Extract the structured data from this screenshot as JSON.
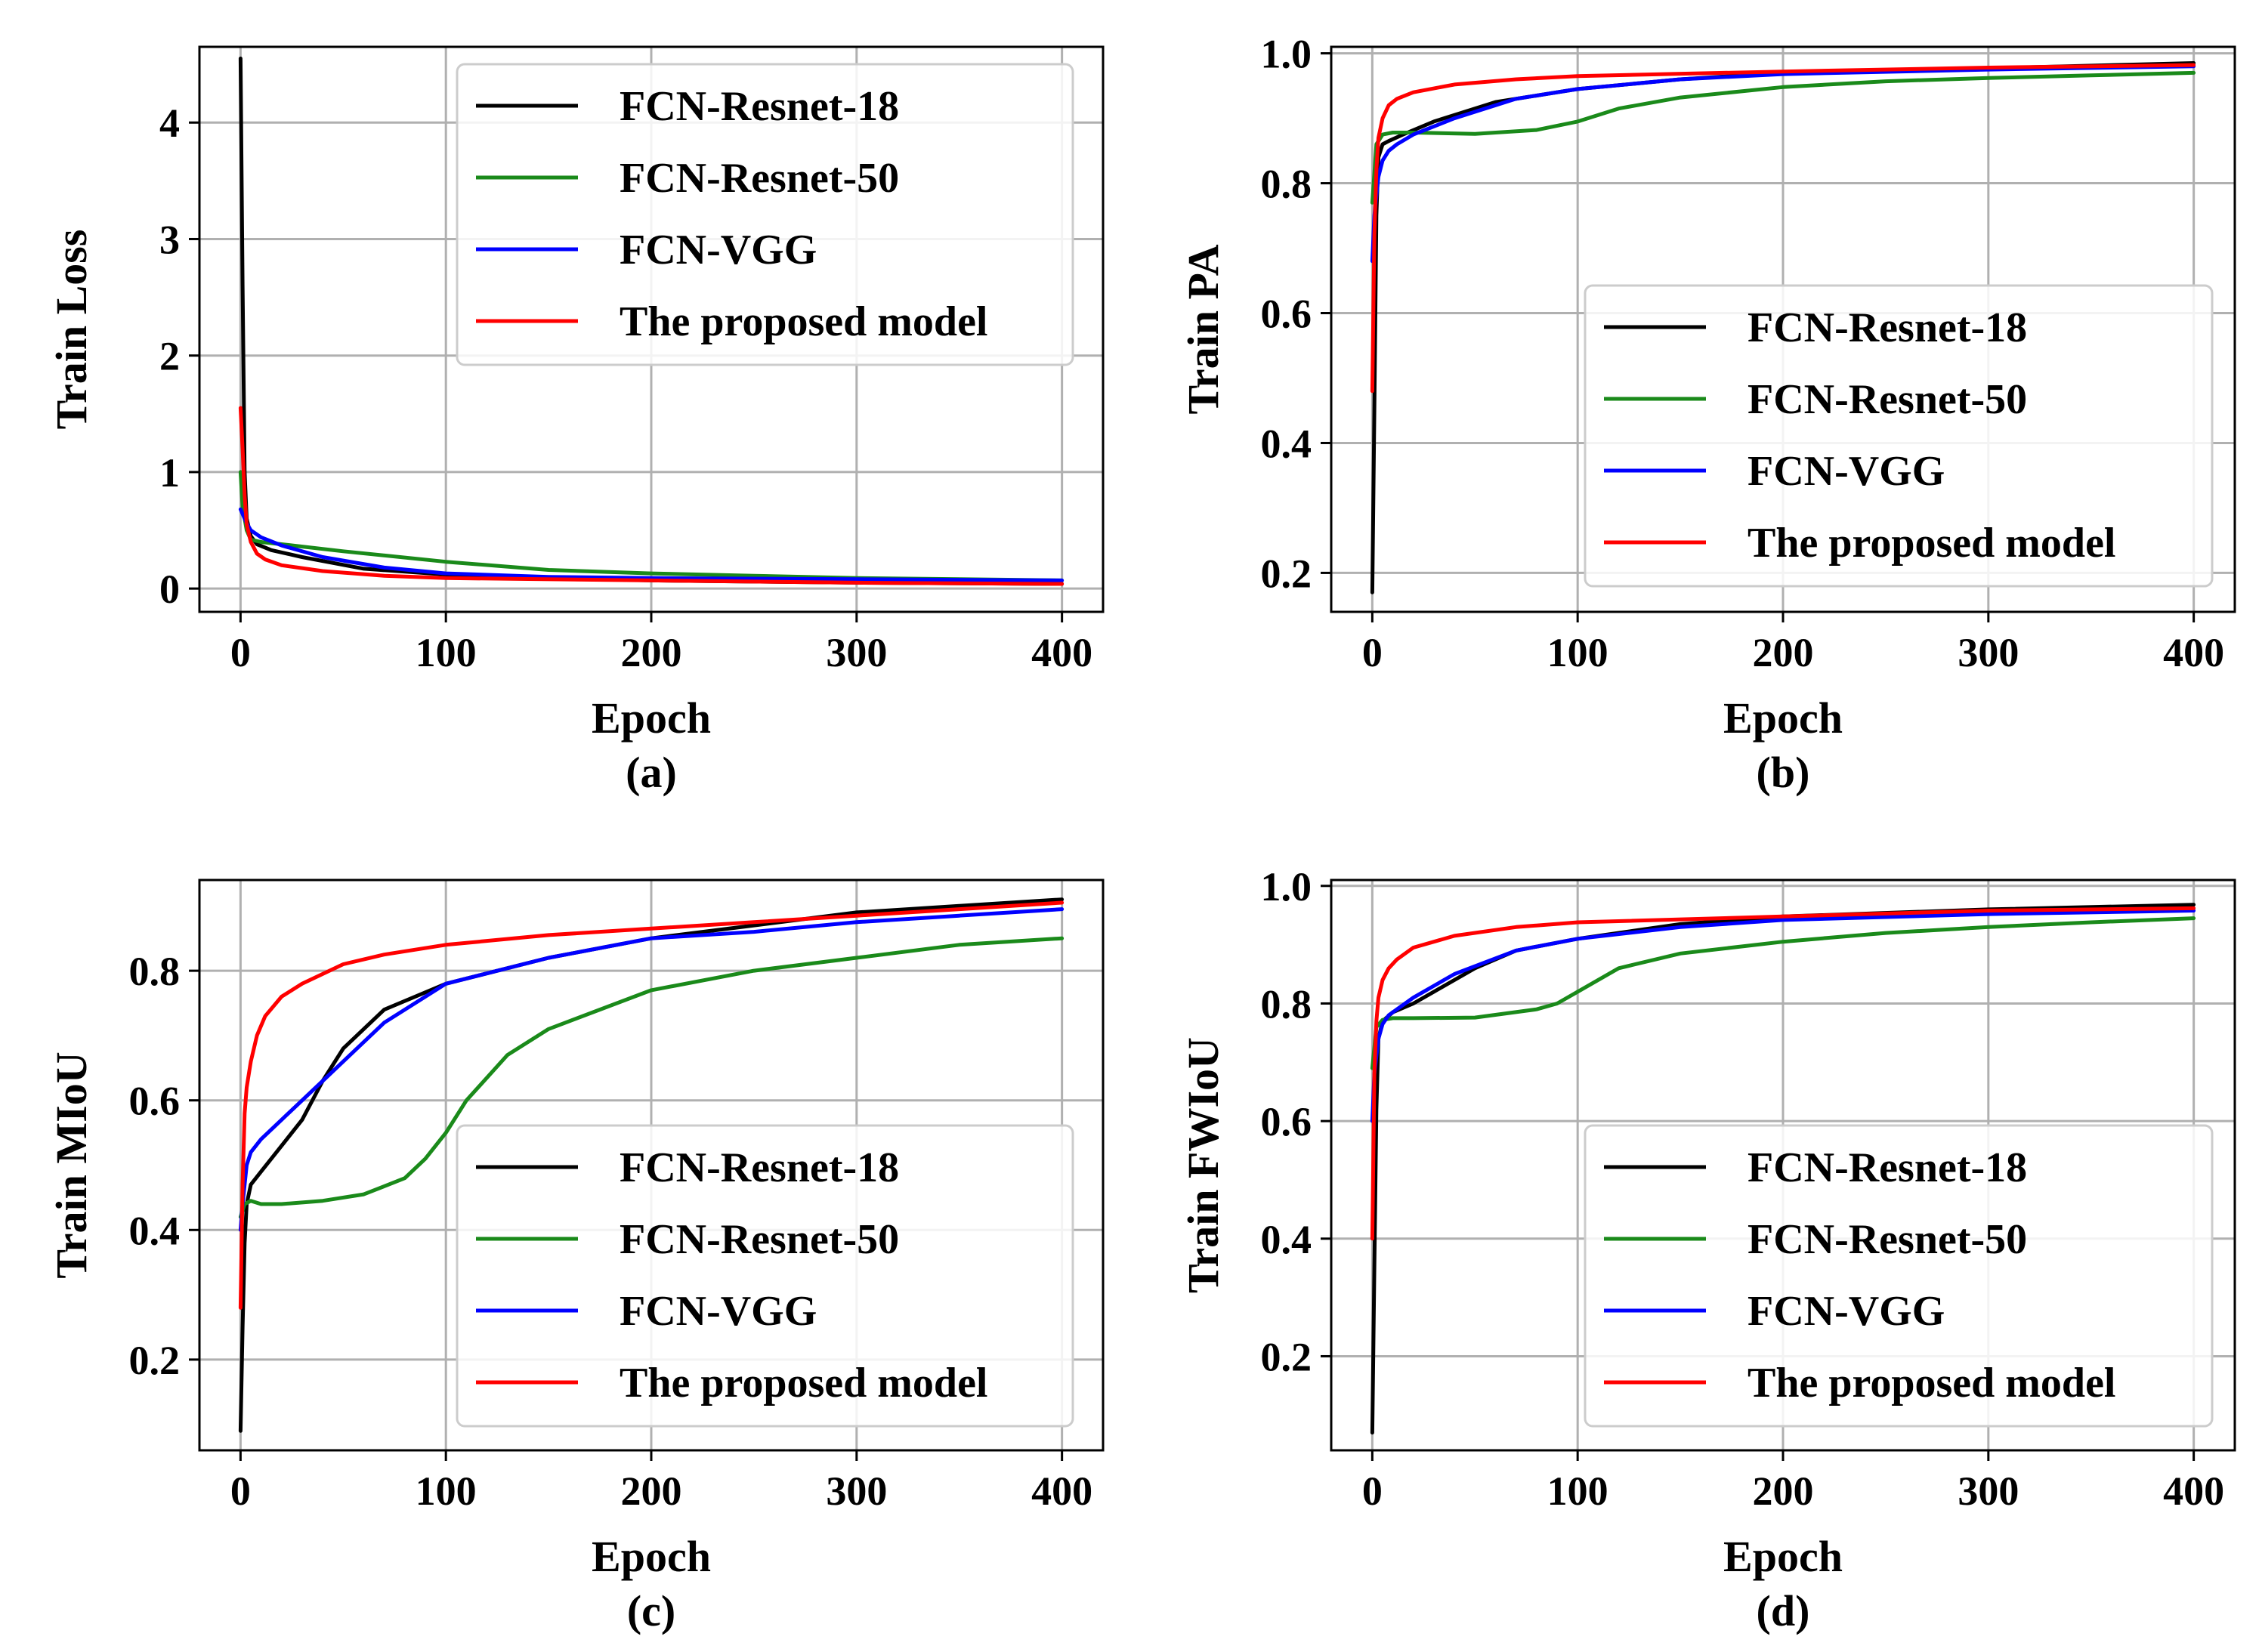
{
  "colors": {
    "FCN-Resnet-18": "#000000",
    "FCN-Resnet-50": "#1a8a1a",
    "FCN-VGG": "#0000ff",
    "The proposed model": "#ff0000"
  },
  "chart_data": [
    {
      "type": "line",
      "panel": "(a)",
      "xlabel": "Epoch",
      "ylabel": "Train Loss",
      "xlim": [
        -20,
        420
      ],
      "ylim": [
        -0.2,
        4.65
      ],
      "xticks": [
        0,
        100,
        200,
        300,
        400
      ],
      "yticks": [
        0,
        1,
        2,
        3,
        4
      ],
      "xticklabels": [
        "0",
        "100",
        "200",
        "300",
        "400"
      ],
      "yticklabels": [
        "0",
        "1",
        "2",
        "3",
        "4"
      ],
      "grid": true,
      "legend_position": "top-right",
      "series": [
        {
          "name": "FCN-Resnet-18",
          "x": [
            0,
            1,
            2,
            3,
            5,
            8,
            15,
            30,
            60,
            100,
            150,
            200,
            300,
            400
          ],
          "y": [
            4.55,
            2.6,
            1.0,
            0.6,
            0.45,
            0.38,
            0.33,
            0.27,
            0.17,
            0.12,
            0.09,
            0.07,
            0.05,
            0.04
          ]
        },
        {
          "name": "FCN-Resnet-50",
          "x": [
            0,
            1,
            3,
            5,
            10,
            20,
            50,
            100,
            150,
            200,
            250,
            300,
            350,
            400
          ],
          "y": [
            1.0,
            0.7,
            0.5,
            0.42,
            0.4,
            0.38,
            0.32,
            0.23,
            0.16,
            0.13,
            0.11,
            0.09,
            0.08,
            0.07
          ]
        },
        {
          "name": "FCN-VGG",
          "x": [
            0,
            1,
            3,
            5,
            10,
            20,
            40,
            70,
            100,
            150,
            200,
            300,
            400
          ],
          "y": [
            0.68,
            0.64,
            0.56,
            0.5,
            0.44,
            0.37,
            0.27,
            0.18,
            0.13,
            0.1,
            0.09,
            0.08,
            0.07
          ]
        },
        {
          "name": "The proposed model",
          "x": [
            0,
            1,
            2,
            3,
            5,
            8,
            12,
            20,
            40,
            70,
            100,
            200,
            300,
            400
          ],
          "y": [
            1.55,
            1.2,
            0.8,
            0.55,
            0.4,
            0.3,
            0.25,
            0.2,
            0.15,
            0.11,
            0.09,
            0.07,
            0.05,
            0.04
          ]
        }
      ]
    },
    {
      "type": "line",
      "panel": "(b)",
      "xlabel": "Epoch",
      "ylabel": "Train PA",
      "xlim": [
        -20,
        420
      ],
      "ylim": [
        0.14,
        1.01
      ],
      "xticks": [
        0,
        100,
        200,
        300,
        400
      ],
      "yticks": [
        0.2,
        0.4,
        0.6,
        0.8,
        1.0
      ],
      "xticklabels": [
        "0",
        "100",
        "200",
        "300",
        "400"
      ],
      "yticklabels": [
        "0.2",
        "0.4",
        "0.6",
        "0.8",
        "1.0"
      ],
      "grid": true,
      "legend_position": "lower-right",
      "series": [
        {
          "name": "FCN-Resnet-18",
          "x": [
            0,
            1,
            2,
            3,
            5,
            8,
            15,
            30,
            60,
            100,
            150,
            200,
            300,
            400
          ],
          "y": [
            0.17,
            0.45,
            0.75,
            0.84,
            0.86,
            0.865,
            0.875,
            0.895,
            0.925,
            0.945,
            0.96,
            0.97,
            0.977,
            0.985
          ]
        },
        {
          "name": "FCN-Resnet-50",
          "x": [
            0,
            2,
            5,
            10,
            20,
            50,
            80,
            100,
            120,
            150,
            200,
            250,
            300,
            350,
            400
          ],
          "y": [
            0.77,
            0.86,
            0.875,
            0.878,
            0.878,
            0.876,
            0.882,
            0.895,
            0.915,
            0.932,
            0.948,
            0.957,
            0.962,
            0.966,
            0.97
          ]
        },
        {
          "name": "FCN-VGG",
          "x": [
            0,
            1,
            3,
            5,
            8,
            12,
            20,
            40,
            70,
            100,
            150,
            200,
            300,
            400
          ],
          "y": [
            0.68,
            0.75,
            0.81,
            0.835,
            0.85,
            0.86,
            0.875,
            0.9,
            0.93,
            0.945,
            0.96,
            0.968,
            0.975,
            0.98
          ]
        },
        {
          "name": "The proposed model",
          "x": [
            0,
            1,
            2,
            3,
            5,
            8,
            12,
            20,
            40,
            70,
            100,
            200,
            300,
            400
          ],
          "y": [
            0.48,
            0.72,
            0.82,
            0.87,
            0.9,
            0.92,
            0.93,
            0.94,
            0.952,
            0.96,
            0.965,
            0.972,
            0.978,
            0.982
          ]
        }
      ]
    },
    {
      "type": "line",
      "panel": "(c)",
      "xlabel": "Epoch",
      "ylabel": "Train MIoU",
      "xlim": [
        -20,
        420
      ],
      "ylim": [
        0.06,
        0.94
      ],
      "xticks": [
        0,
        100,
        200,
        300,
        400
      ],
      "yticks": [
        0.2,
        0.4,
        0.6,
        0.8
      ],
      "xticklabels": [
        "0",
        "100",
        "200",
        "300",
        "400"
      ],
      "yticklabels": [
        "0.2",
        "0.4",
        "0.6",
        "0.8"
      ],
      "grid": true,
      "legend_position": "lower-right",
      "series": [
        {
          "name": "FCN-Resnet-18",
          "x": [
            0,
            1,
            2,
            3,
            5,
            10,
            20,
            30,
            40,
            50,
            70,
            100,
            150,
            200,
            250,
            300,
            350,
            400
          ],
          "y": [
            0.09,
            0.25,
            0.38,
            0.44,
            0.47,
            0.49,
            0.53,
            0.57,
            0.63,
            0.68,
            0.74,
            0.78,
            0.82,
            0.85,
            0.87,
            0.89,
            0.9,
            0.91
          ]
        },
        {
          "name": "FCN-Resnet-50",
          "x": [
            0,
            2,
            5,
            10,
            20,
            40,
            60,
            80,
            90,
            100,
            110,
            130,
            150,
            200,
            250,
            300,
            350,
            400
          ],
          "y": [
            0.42,
            0.44,
            0.445,
            0.44,
            0.44,
            0.445,
            0.455,
            0.48,
            0.51,
            0.55,
            0.6,
            0.67,
            0.71,
            0.77,
            0.8,
            0.82,
            0.84,
            0.85
          ]
        },
        {
          "name": "FCN-VGG",
          "x": [
            0,
            1,
            3,
            5,
            10,
            20,
            40,
            70,
            100,
            150,
            200,
            250,
            300,
            350,
            400
          ],
          "y": [
            0.4,
            0.44,
            0.5,
            0.52,
            0.54,
            0.57,
            0.63,
            0.72,
            0.78,
            0.82,
            0.85,
            0.86,
            0.875,
            0.885,
            0.895
          ]
        },
        {
          "name": "The proposed model",
          "x": [
            0,
            1,
            2,
            3,
            5,
            8,
            12,
            20,
            30,
            50,
            70,
            100,
            150,
            200,
            250,
            300,
            350,
            400
          ],
          "y": [
            0.28,
            0.47,
            0.58,
            0.62,
            0.66,
            0.7,
            0.73,
            0.76,
            0.78,
            0.81,
            0.825,
            0.84,
            0.855,
            0.865,
            0.875,
            0.885,
            0.895,
            0.905
          ]
        }
      ]
    },
    {
      "type": "line",
      "panel": "(d)",
      "xlabel": "Epoch",
      "ylabel": "Train FWIoU",
      "xlim": [
        -20,
        420
      ],
      "ylim": [
        0.04,
        1.01
      ],
      "xticks": [
        0,
        100,
        200,
        300,
        400
      ],
      "yticks": [
        0.2,
        0.4,
        0.6,
        0.8,
        1.0
      ],
      "xticklabels": [
        "0",
        "100",
        "200",
        "300",
        "400"
      ],
      "yticklabels": [
        "0.2",
        "0.4",
        "0.6",
        "0.8",
        "1.0"
      ],
      "grid": true,
      "legend_position": "lower-right",
      "series": [
        {
          "name": "FCN-Resnet-18",
          "x": [
            0,
            1,
            2,
            3,
            5,
            10,
            20,
            30,
            50,
            70,
            100,
            150,
            200,
            300,
            400
          ],
          "y": [
            0.07,
            0.35,
            0.62,
            0.74,
            0.77,
            0.785,
            0.8,
            0.82,
            0.86,
            0.89,
            0.91,
            0.935,
            0.948,
            0.96,
            0.968
          ]
        },
        {
          "name": "FCN-Resnet-50",
          "x": [
            0,
            2,
            5,
            10,
            20,
            50,
            80,
            90,
            100,
            120,
            150,
            200,
            250,
            300,
            350,
            400
          ],
          "y": [
            0.69,
            0.76,
            0.772,
            0.775,
            0.775,
            0.776,
            0.79,
            0.8,
            0.82,
            0.86,
            0.885,
            0.905,
            0.92,
            0.93,
            0.938,
            0.945
          ]
        },
        {
          "name": "FCN-VGG",
          "x": [
            0,
            1,
            3,
            5,
            8,
            12,
            20,
            40,
            70,
            100,
            150,
            200,
            300,
            400
          ],
          "y": [
            0.6,
            0.68,
            0.74,
            0.765,
            0.78,
            0.79,
            0.81,
            0.85,
            0.89,
            0.91,
            0.93,
            0.942,
            0.952,
            0.958
          ]
        },
        {
          "name": "The proposed model",
          "x": [
            0,
            1,
            2,
            3,
            5,
            8,
            12,
            20,
            40,
            70,
            100,
            200,
            300,
            400
          ],
          "y": [
            0.4,
            0.68,
            0.77,
            0.81,
            0.84,
            0.86,
            0.875,
            0.895,
            0.915,
            0.93,
            0.938,
            0.948,
            0.958,
            0.962
          ]
        }
      ]
    }
  ]
}
